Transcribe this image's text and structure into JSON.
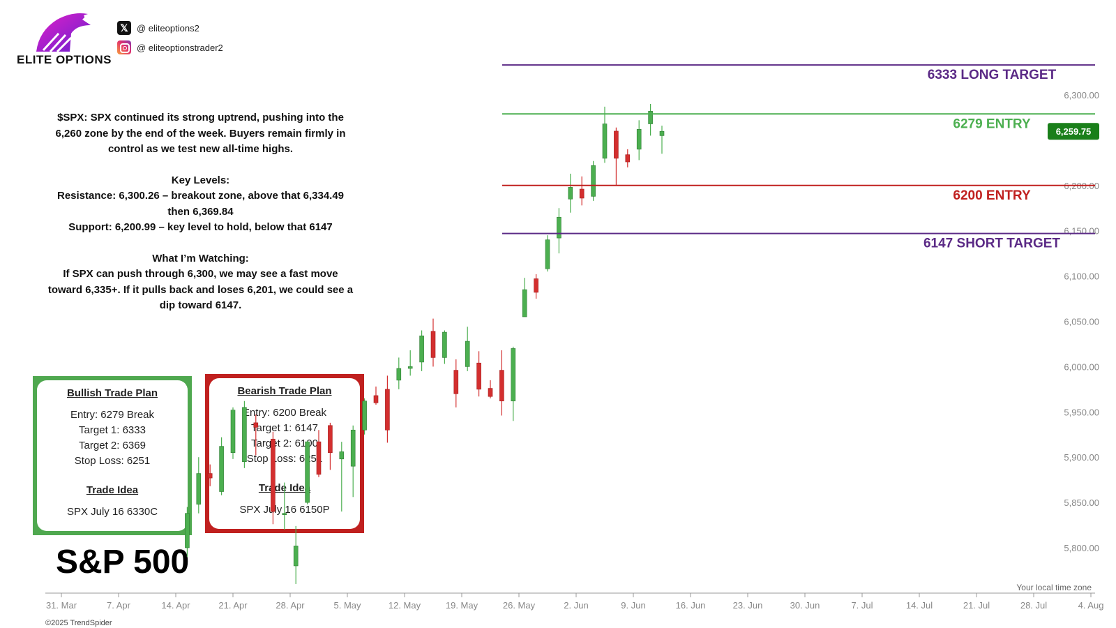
{
  "brand": {
    "logo_text": "ELITE OPTIONS",
    "twitter": "@ eliteoptions2",
    "instagram": "@ eliteoptionstrader2"
  },
  "commentary": {
    "summary_lines": [
      "$SPX: SPX continued its strong uptrend, pushing into the",
      "6,260 zone by the end of the week. Buyers remain firmly in",
      "control as we test new all-time highs."
    ],
    "key_levels_lines": [
      "Key Levels:",
      "Resistance: 6,300.26 – breakout zone, above that 6,334.49",
      "then 6,369.84",
      "Support: 6,200.99 – key level to hold, below that 6147"
    ],
    "watching_lines": [
      "What I’m Watching:",
      "If SPX can push through 6,300, we may see a fast move",
      "toward 6,335+. If it pulls back and loses 6,201, we could see a",
      "dip toward 6147."
    ]
  },
  "bullish_plan": {
    "title": "Bullish Trade Plan",
    "rows": [
      "Entry: 6279 Break",
      "Target 1: 6333",
      "Target 2: 6369",
      "Stop Loss: 6251"
    ],
    "idea_title": "Trade Idea",
    "idea": "SPX July 16 6330C",
    "color": "#4fa84f"
  },
  "bearish_plan": {
    "title": "Bearish Trade Plan",
    "rows": [
      "Entry: 6200 Break",
      "Target 1: 6147",
      "Target 2: 6100",
      "Stop Loss: 6251"
    ],
    "idea_title": "Trade Idea",
    "idea": "SPX July 16 6150P",
    "color": "#c0201f"
  },
  "index_title": "S&P 500",
  "copyright": "©2025 TrendSpider",
  "chart_data": {
    "type": "candlestick",
    "timezone_note": "Your local time zone",
    "ylim": [
      5735,
      6360
    ],
    "y_ticks": [
      "5,800.00",
      "5,850.00",
      "5,900.00",
      "5,950.00",
      "6,000.00",
      "6,050.00",
      "6,100.00",
      "6,150.00",
      "6,200.00",
      "6,300.00"
    ],
    "x_ticks": [
      "31. Mar",
      "7. Apr",
      "14. Apr",
      "21. Apr",
      "28. Apr",
      "5. May",
      "12. May",
      "19. May",
      "26. May",
      "2. Jun",
      "9. Jun",
      "16. Jun",
      "23. Jun",
      "30. Jun",
      "7. Jul",
      "14. Jul",
      "21. Jul",
      "28. Jul",
      "4. Aug"
    ],
    "last_price": "6,259.75",
    "colors": {
      "up": "#4caf50",
      "down": "#d32f2f",
      "last_price_bg": "#1a7f1a"
    },
    "levels": [
      {
        "value": 6333,
        "label": "6333 LONG TARGET",
        "color": "#5b2a86"
      },
      {
        "value": 6279,
        "label": "6279 ENTRY",
        "color": "#4caf50"
      },
      {
        "value": 6200,
        "label": "6200 ENTRY",
        "color": "#c0201f"
      },
      {
        "value": 6147,
        "label": "6147 SHORT TARGET",
        "color": "#5b2a86"
      }
    ],
    "candles": [
      {
        "x": 11.0,
        "o": 5800,
        "h": 5845,
        "l": 5790,
        "c": 5838
      },
      {
        "x": 12.0,
        "o": 5848,
        "h": 5900,
        "l": 5838,
        "c": 5882
      },
      {
        "x": 13.0,
        "o": 5882,
        "h": 5892,
        "l": 5868,
        "c": 5877
      },
      {
        "x": 14.0,
        "o": 5862,
        "h": 5922,
        "l": 5858,
        "c": 5912
      },
      {
        "x": 15.0,
        "o": 5905,
        "h": 5955,
        "l": 5898,
        "c": 5952
      },
      {
        "x": 16.0,
        "o": 5895,
        "h": 5962,
        "l": 5888,
        "c": 5955
      },
      {
        "x": 17.0,
        "o": 5938,
        "h": 5947,
        "l": 5902,
        "c": 5933
      },
      {
        "x": 18.5,
        "o": 5920,
        "h": 5928,
        "l": 5826,
        "c": 5840
      },
      {
        "x": 19.5,
        "o": 5838,
        "h": 5872,
        "l": 5820,
        "c": 5838
      },
      {
        "x": 20.5,
        "o": 5780,
        "h": 5824,
        "l": 5760,
        "c": 5802
      },
      {
        "x": 21.5,
        "o": 5850,
        "h": 5918,
        "l": 5848,
        "c": 5917
      },
      {
        "x": 22.5,
        "o": 5917,
        "h": 5930,
        "l": 5878,
        "c": 5881
      },
      {
        "x": 23.5,
        "o": 5935,
        "h": 5938,
        "l": 5886,
        "c": 5905
      },
      {
        "x": 24.5,
        "o": 5898,
        "h": 5917,
        "l": 5840,
        "c": 5906
      },
      {
        "x": 25.5,
        "o": 5890,
        "h": 5935,
        "l": 5856,
        "c": 5930
      },
      {
        "x": 26.5,
        "o": 5930,
        "h": 5965,
        "l": 5925,
        "c": 5962
      },
      {
        "x": 27.5,
        "o": 5968,
        "h": 5978,
        "l": 5958,
        "c": 5960
      },
      {
        "x": 28.5,
        "o": 5975,
        "h": 5990,
        "l": 5916,
        "c": 5930
      },
      {
        "x": 29.5,
        "o": 5985,
        "h": 6010,
        "l": 5975,
        "c": 5998
      },
      {
        "x": 30.5,
        "o": 5998,
        "h": 6018,
        "l": 5990,
        "c": 6000
      },
      {
        "x": 31.5,
        "o": 6005,
        "h": 6040,
        "l": 5995,
        "c": 6034
      },
      {
        "x": 32.5,
        "o": 6039,
        "h": 6053,
        "l": 6000,
        "c": 6010
      },
      {
        "x": 33.5,
        "o": 6010,
        "h": 6040,
        "l": 6003,
        "c": 6038
      },
      {
        "x": 34.5,
        "o": 5996,
        "h": 6008,
        "l": 5955,
        "c": 5970
      },
      {
        "x": 35.5,
        "o": 6000,
        "h": 6044,
        "l": 5995,
        "c": 6028
      },
      {
        "x": 36.5,
        "o": 6004,
        "h": 6017,
        "l": 5967,
        "c": 5975
      },
      {
        "x": 37.5,
        "o": 5976,
        "h": 5985,
        "l": 5965,
        "c": 5967
      },
      {
        "x": 38.5,
        "o": 5996,
        "h": 6018,
        "l": 5946,
        "c": 5962
      },
      {
        "x": 39.5,
        "o": 5962,
        "h": 6022,
        "l": 5940,
        "c": 6020
      },
      {
        "x": 40.5,
        "o": 6055,
        "h": 6098,
        "l": 6055,
        "c": 6085
      },
      {
        "x": 41.5,
        "o": 6097,
        "h": 6102,
        "l": 6075,
        "c": 6082
      },
      {
        "x": 42.5,
        "o": 6108,
        "h": 6145,
        "l": 6105,
        "c": 6140
      },
      {
        "x": 43.5,
        "o": 6142,
        "h": 6175,
        "l": 6125,
        "c": 6165
      },
      {
        "x": 44.5,
        "o": 6185,
        "h": 6213,
        "l": 6170,
        "c": 6198
      },
      {
        "x": 45.5,
        "o": 6196,
        "h": 6210,
        "l": 6178,
        "c": 6186
      },
      {
        "x": 46.5,
        "o": 6188,
        "h": 6227,
        "l": 6183,
        "c": 6222
      },
      {
        "x": 47.5,
        "o": 6230,
        "h": 6287,
        "l": 6225,
        "c": 6268
      },
      {
        "x": 48.5,
        "o": 6260,
        "h": 6264,
        "l": 6200,
        "c": 6230
      },
      {
        "x": 49.5,
        "o": 6234,
        "h": 6240,
        "l": 6220,
        "c": 6226
      },
      {
        "x": 50.5,
        "o": 6240,
        "h": 6272,
        "l": 6228,
        "c": 6262
      },
      {
        "x": 51.5,
        "o": 6268,
        "h": 6290,
        "l": 6255,
        "c": 6282
      },
      {
        "x": 52.5,
        "o": 6255,
        "h": 6266,
        "l": 6235,
        "c": 6259.75
      }
    ]
  }
}
